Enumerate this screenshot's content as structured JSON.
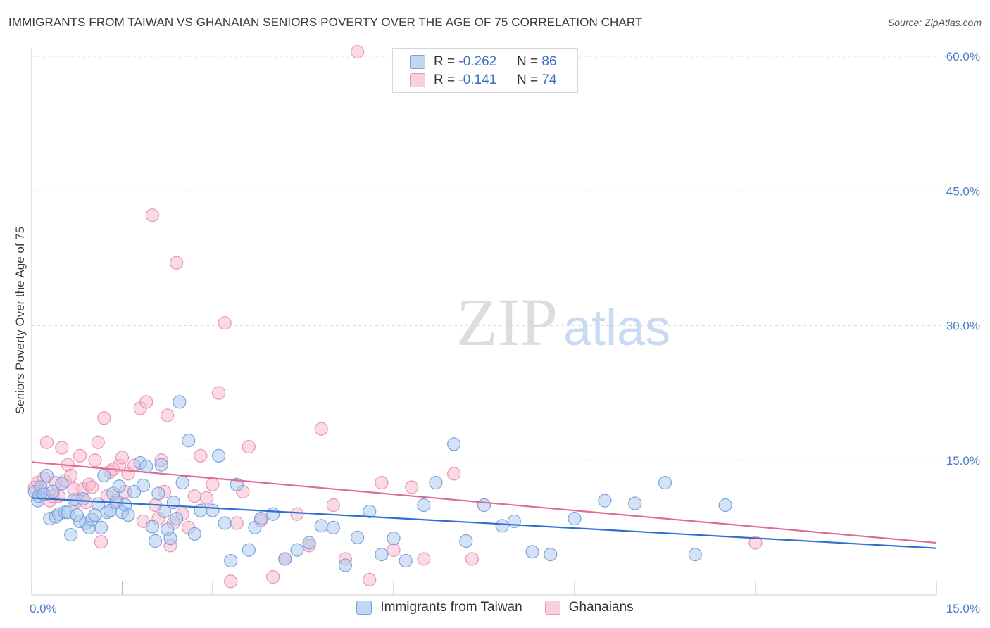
{
  "title": "IMMIGRANTS FROM TAIWAN VS GHANAIAN SENIORS POVERTY OVER THE AGE OF 75 CORRELATION CHART",
  "source": "Source: ZipAtlas.com",
  "watermark": {
    "zip": "ZIP",
    "atlas": "atlas"
  },
  "legend": {
    "row1": {
      "r_label": "R = ",
      "r_value": "-0.262",
      "n_label": "N = ",
      "n_value": "86"
    },
    "row2": {
      "r_label": "R = ",
      "r_value": "-0.141",
      "n_label": "N = ",
      "n_value": "74"
    }
  },
  "bottom_legend": {
    "series1": "Immigrants from Taiwan",
    "series2": "Ghanaians"
  },
  "colors": {
    "blue_fill": "#a9c6ee",
    "blue_stroke": "#7aa3dd",
    "blue_line": "#2f6fcf",
    "pink_fill": "#f5b8cc",
    "pink_stroke": "#ec93b2",
    "pink_line": "#e06a96",
    "axis_text": "#4a7cc7",
    "grid": "#dddddd"
  },
  "chart_data": {
    "type": "scatter",
    "title": "IMMIGRANTS FROM TAIWAN VS GHANAIAN SENIORS POVERTY OVER THE AGE OF 75 CORRELATION CHART",
    "xlabel": "",
    "ylabel": "Seniors Poverty Over the Age of 75",
    "xlim": [
      0,
      15
    ],
    "ylim": [
      0,
      60
    ],
    "x_tick_labels": [
      {
        "value": 0,
        "label": "0.0%"
      },
      {
        "value": 15,
        "label": "15.0%"
      }
    ],
    "y_tick_labels": [
      {
        "value": 15,
        "label": "15.0%"
      },
      {
        "value": 30,
        "label": "30.0%"
      },
      {
        "value": 45,
        "label": "45.0%"
      },
      {
        "value": 60,
        "label": "60.0%"
      }
    ],
    "series": [
      {
        "name": "Immigrants from Taiwan",
        "color": "#7aa3dd",
        "trend": {
          "x": [
            0,
            15
          ],
          "y": [
            10.8,
            5.2
          ]
        },
        "points": [
          [
            0.05,
            11.5
          ],
          [
            0.1,
            10.5
          ],
          [
            0.12,
            11
          ],
          [
            0.15,
            12
          ],
          [
            0.2,
            11.2
          ],
          [
            0.25,
            13.3
          ],
          [
            0.3,
            8.5
          ],
          [
            0.35,
            11.5
          ],
          [
            0.4,
            8.7
          ],
          [
            0.45,
            9
          ],
          [
            0.5,
            12.4
          ],
          [
            0.55,
            9.2
          ],
          [
            0.6,
            9.2
          ],
          [
            0.65,
            6.7
          ],
          [
            0.7,
            10.6
          ],
          [
            0.75,
            8.9
          ],
          [
            0.8,
            8.2
          ],
          [
            0.85,
            10.7
          ],
          [
            0.9,
            8
          ],
          [
            0.95,
            7.5
          ],
          [
            1.0,
            8.4
          ],
          [
            1.05,
            8.9
          ],
          [
            1.1,
            10.1
          ],
          [
            1.15,
            7.5
          ],
          [
            1.2,
            13.3
          ],
          [
            1.25,
            9.2
          ],
          [
            1.3,
            9.4
          ],
          [
            1.35,
            11.3
          ],
          [
            1.4,
            10.3
          ],
          [
            1.45,
            12.1
          ],
          [
            1.5,
            9.2
          ],
          [
            1.55,
            10
          ],
          [
            1.6,
            8.9
          ],
          [
            1.7,
            11.5
          ],
          [
            1.8,
            14.7
          ],
          [
            1.85,
            12.2
          ],
          [
            1.9,
            14.3
          ],
          [
            2.0,
            7.6
          ],
          [
            2.05,
            6
          ],
          [
            2.1,
            11.3
          ],
          [
            2.15,
            14.5
          ],
          [
            2.2,
            9.3
          ],
          [
            2.25,
            7.3
          ],
          [
            2.3,
            6.3
          ],
          [
            2.35,
            10.3
          ],
          [
            2.4,
            8.5
          ],
          [
            2.45,
            21.5
          ],
          [
            2.5,
            12.5
          ],
          [
            2.6,
            17.2
          ],
          [
            2.7,
            6.8
          ],
          [
            2.8,
            9.4
          ],
          [
            3.0,
            9.4
          ],
          [
            3.1,
            15.5
          ],
          [
            3.2,
            8
          ],
          [
            3.3,
            3.8
          ],
          [
            3.4,
            12.3
          ],
          [
            3.6,
            5
          ],
          [
            3.7,
            7.5
          ],
          [
            3.8,
            8.5
          ],
          [
            4.0,
            9
          ],
          [
            4.2,
            4
          ],
          [
            4.4,
            5
          ],
          [
            4.6,
            5.8
          ],
          [
            4.8,
            7.7
          ],
          [
            5.0,
            7.5
          ],
          [
            5.2,
            3.3
          ],
          [
            5.4,
            6.4
          ],
          [
            5.6,
            9.3
          ],
          [
            5.8,
            4.5
          ],
          [
            6.0,
            6.3
          ],
          [
            6.2,
            3.8
          ],
          [
            6.5,
            10
          ],
          [
            6.7,
            12.5
          ],
          [
            7.0,
            16.8
          ],
          [
            7.2,
            6
          ],
          [
            7.5,
            10
          ],
          [
            7.8,
            7.7
          ],
          [
            8.0,
            8.2
          ],
          [
            8.3,
            4.8
          ],
          [
            8.6,
            4.5
          ],
          [
            9.0,
            8.5
          ],
          [
            9.5,
            10.5
          ],
          [
            10.0,
            10.2
          ],
          [
            10.5,
            12.5
          ],
          [
            11.0,
            4.5
          ],
          [
            11.5,
            10
          ]
        ]
      },
      {
        "name": "Ghanaians",
        "color": "#ec93b2",
        "trend": {
          "x": [
            0,
            15
          ],
          "y": [
            14.8,
            5.8
          ]
        },
        "points": [
          [
            0.05,
            12
          ],
          [
            0.1,
            12.5
          ],
          [
            0.15,
            11.5
          ],
          [
            0.2,
            13
          ],
          [
            0.25,
            17
          ],
          [
            0.3,
            10.5
          ],
          [
            0.35,
            11
          ],
          [
            0.4,
            12.5
          ],
          [
            0.45,
            11
          ],
          [
            0.5,
            16.4
          ],
          [
            0.55,
            12.7
          ],
          [
            0.6,
            14.5
          ],
          [
            0.65,
            13.3
          ],
          [
            0.7,
            11.8
          ],
          [
            0.75,
            10.5
          ],
          [
            0.8,
            15.5
          ],
          [
            0.85,
            11.8
          ],
          [
            0.9,
            10.3
          ],
          [
            0.95,
            12.3
          ],
          [
            1.0,
            12
          ],
          [
            1.05,
            15
          ],
          [
            1.1,
            17
          ],
          [
            1.15,
            5.9
          ],
          [
            1.2,
            19.7
          ],
          [
            1.25,
            11
          ],
          [
            1.3,
            13.7
          ],
          [
            1.35,
            14
          ],
          [
            1.4,
            10.5
          ],
          [
            1.45,
            14.4
          ],
          [
            1.5,
            15.3
          ],
          [
            1.55,
            11.5
          ],
          [
            1.6,
            13.5
          ],
          [
            1.7,
            14.4
          ],
          [
            1.8,
            20.8
          ],
          [
            1.85,
            8.2
          ],
          [
            1.9,
            21.5
          ],
          [
            2.0,
            42.3
          ],
          [
            2.05,
            10
          ],
          [
            2.1,
            8.5
          ],
          [
            2.15,
            15
          ],
          [
            2.2,
            11.5
          ],
          [
            2.25,
            20
          ],
          [
            2.3,
            5.5
          ],
          [
            2.35,
            8
          ],
          [
            2.4,
            37
          ],
          [
            2.5,
            9
          ],
          [
            2.6,
            7.5
          ],
          [
            2.7,
            11
          ],
          [
            2.8,
            15.5
          ],
          [
            2.9,
            10.8
          ],
          [
            3.0,
            12.3
          ],
          [
            3.1,
            22.5
          ],
          [
            3.2,
            30.3
          ],
          [
            3.3,
            1.5
          ],
          [
            3.4,
            8
          ],
          [
            3.5,
            11.5
          ],
          [
            3.6,
            16.5
          ],
          [
            3.8,
            8.3
          ],
          [
            4.0,
            2
          ],
          [
            4.2,
            4
          ],
          [
            4.4,
            9
          ],
          [
            4.6,
            5.5
          ],
          [
            4.8,
            18.5
          ],
          [
            5.0,
            10
          ],
          [
            5.2,
            4
          ],
          [
            5.4,
            60.5
          ],
          [
            5.6,
            1.7
          ],
          [
            5.8,
            12.5
          ],
          [
            6.0,
            5
          ],
          [
            6.3,
            12
          ],
          [
            6.5,
            4
          ],
          [
            7.0,
            13.5
          ],
          [
            7.3,
            4
          ],
          [
            12.0,
            5.8
          ]
        ]
      }
    ]
  }
}
